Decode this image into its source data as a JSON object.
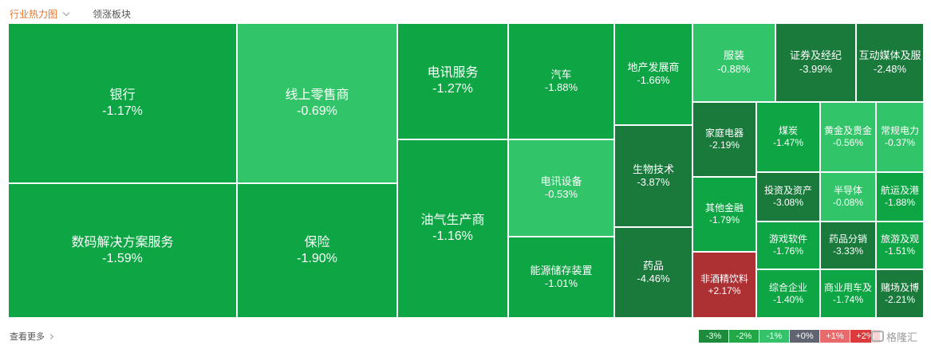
{
  "tabs": {
    "active_label": "行业热力图",
    "second_label": "领涨板块"
  },
  "footer": {
    "more_label": "查看更多"
  },
  "legend": [
    {
      "label": "-3%",
      "color": "#1e8a3c"
    },
    {
      "label": "-2%",
      "color": "#22a846"
    },
    {
      "label": "-1%",
      "color": "#35c26a"
    },
    {
      "label": "+0%",
      "color": "#5f6470"
    },
    {
      "label": "+1%",
      "color": "#e86a6a"
    },
    {
      "label": "+2%",
      "color": "#dd3b3b"
    }
  ],
  "watermark_text": "格隆汇",
  "chart_data": {
    "type": "treemap",
    "colors": {
      "strong_fall": "#1a7a3c",
      "fall": "#0ea544",
      "mild_fall": "#32c468",
      "rise": "#ad3033"
    },
    "items": [
      {
        "name": "银行",
        "change": "-1.17%",
        "value": -1.17
      },
      {
        "name": "数码解决方案服务",
        "change": "-1.59%",
        "value": -1.59
      },
      {
        "name": "线上零售商",
        "change": "-0.69%",
        "value": -0.69
      },
      {
        "name": "保险",
        "change": "-1.90%",
        "value": -1.9
      },
      {
        "name": "电讯服务",
        "change": "-1.27%",
        "value": -1.27
      },
      {
        "name": "油气生产商",
        "change": "-1.16%",
        "value": -1.16
      },
      {
        "name": "汽车",
        "change": "-1.88%",
        "value": -1.88
      },
      {
        "name": "电讯设备",
        "change": "-0.53%",
        "value": -0.53
      },
      {
        "name": "能源储存装置",
        "change": "-1.01%",
        "value": -1.01
      },
      {
        "name": "地产发展商",
        "change": "-1.66%",
        "value": -1.66
      },
      {
        "name": "生物技术",
        "change": "-3.87%",
        "value": -3.87
      },
      {
        "name": "药品",
        "change": "-4.46%",
        "value": -4.46
      },
      {
        "name": "服装",
        "change": "-0.88%",
        "value": -0.88
      },
      {
        "name": "证券及经纪",
        "change": "-3.99%",
        "value": -3.99
      },
      {
        "name": "互动媒体及服",
        "change": "-2.48%",
        "value": -2.48
      },
      {
        "name": "家庭电器",
        "change": "-2.19%",
        "value": -2.19
      },
      {
        "name": "煤炭",
        "change": "-1.47%",
        "value": -1.47
      },
      {
        "name": "黄金及贵金",
        "change": "-0.56%",
        "value": -0.56
      },
      {
        "name": "常规电力",
        "change": "-0.37%",
        "value": -0.37
      },
      {
        "name": "其他金融",
        "change": "-1.79%",
        "value": -1.79
      },
      {
        "name": "投资及资产",
        "change": "-3.08%",
        "value": -3.08
      },
      {
        "name": "半导体",
        "change": "-0.08%",
        "value": -0.08
      },
      {
        "name": "航运及港",
        "change": "-1.88%",
        "value": -1.88
      },
      {
        "name": "游戏软件",
        "change": "-1.76%",
        "value": -1.76
      },
      {
        "name": "药品分销",
        "change": "-3.33%",
        "value": -3.33
      },
      {
        "name": "旅游及观",
        "change": "-1.51%",
        "value": -1.51
      },
      {
        "name": "非酒精饮料",
        "change": "+2.17%",
        "value": 2.17
      },
      {
        "name": "综合企业",
        "change": "-1.40%",
        "value": -1.4
      },
      {
        "name": "商业用车及",
        "change": "-1.74%",
        "value": -1.74
      },
      {
        "name": "赌场及博",
        "change": "-2.21%",
        "value": -2.21
      }
    ]
  }
}
